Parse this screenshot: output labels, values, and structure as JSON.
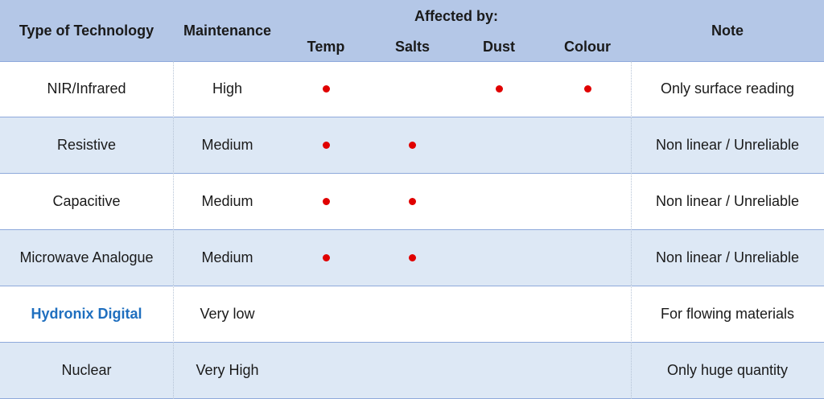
{
  "header": {
    "type": "Type of Technology",
    "maintenance": "Maintenance",
    "affected": "Affected by:",
    "temp": "Temp",
    "salts": "Salts",
    "dust": "Dust",
    "colour": "Colour",
    "note": "Note"
  },
  "rows": [
    {
      "name": "NIR/Infrared",
      "maintenance": "High",
      "temp": true,
      "salts": false,
      "dust": true,
      "colour": true,
      "note": "Only surface reading"
    },
    {
      "name": "Resistive",
      "maintenance": "Medium",
      "temp": true,
      "salts": true,
      "dust": false,
      "colour": false,
      "note": "Non linear / Unreliable"
    },
    {
      "name": "Capacitive",
      "maintenance": "Medium",
      "temp": true,
      "salts": true,
      "dust": false,
      "colour": false,
      "note": "Non linear / Unreliable"
    },
    {
      "name": "Microwave Analogue",
      "maintenance": "Medium",
      "temp": true,
      "salts": true,
      "dust": false,
      "colour": false,
      "note": "Non linear / Unreliable"
    },
    {
      "name": "Hydronix Digital",
      "maintenance": "Very low",
      "temp": false,
      "salts": false,
      "dust": false,
      "colour": false,
      "note": "For flowing materials",
      "highlight": true
    },
    {
      "name": "Nuclear",
      "maintenance": "Very High",
      "temp": false,
      "salts": false,
      "dust": false,
      "colour": false,
      "note": "Only huge quantity"
    }
  ],
  "colors": {
    "header_bg": "#b4c7e7",
    "alt_row_bg": "#dde8f5",
    "dot": "#e00000",
    "highlight_text": "#1f6fbf"
  }
}
